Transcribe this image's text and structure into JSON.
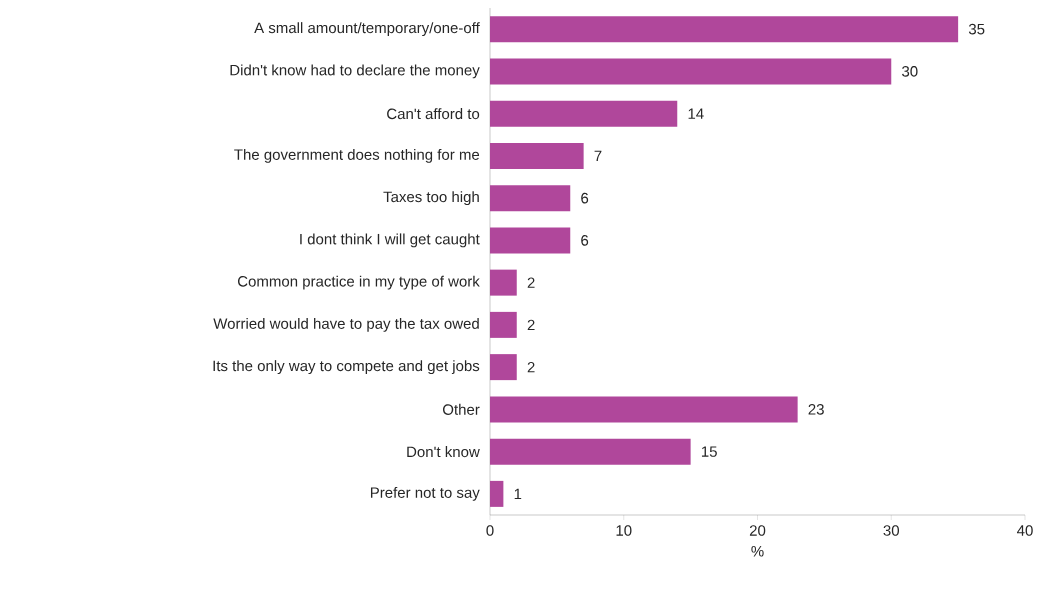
{
  "chart_data": {
    "type": "bar",
    "orientation": "horizontal",
    "xlabel": "%",
    "categories": [
      "A small amount/temporary/one-off",
      "Didn't know had to declare the money",
      "Can't afford to",
      "The government does nothing for me",
      "Taxes too high",
      "I dont think I will get caught",
      "Common practice in my type of work",
      "Worried would have to pay the tax owed",
      "Its the only way to compete and get jobs",
      "Other",
      "Don't know",
      "Prefer not to say"
    ],
    "values": [
      35,
      30,
      14,
      7,
      6,
      6,
      2,
      2,
      2,
      23,
      15,
      1
    ],
    "color": "#b0479b",
    "data_labels": true,
    "xlim": [
      0,
      40
    ],
    "xticks": [
      0,
      10,
      20,
      30,
      40
    ]
  }
}
